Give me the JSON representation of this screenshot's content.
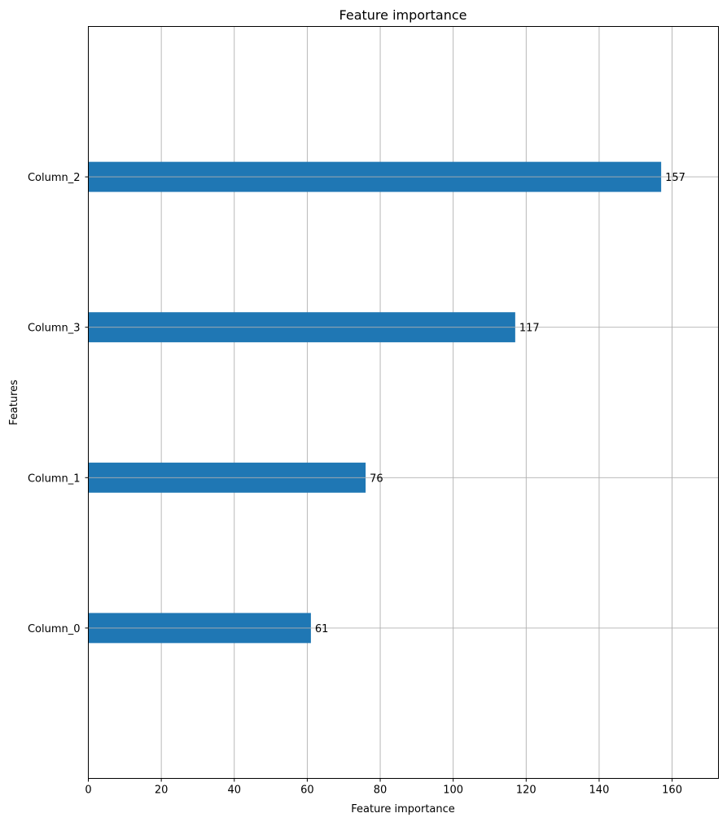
{
  "chart_data": {
    "type": "bar",
    "orientation": "horizontal",
    "title": "Feature importance",
    "xlabel": "Feature importance",
    "ylabel": "Features",
    "categories": [
      "Column_0",
      "Column_1",
      "Column_3",
      "Column_2"
    ],
    "values": [
      61,
      76,
      117,
      157
    ],
    "data_labels": [
      "61",
      "76",
      "117",
      "157"
    ],
    "xlim": [
      0,
      172.7
    ],
    "ylim": [
      -1,
      4
    ],
    "xticks": [
      0,
      20,
      40,
      60,
      80,
      100,
      120,
      140,
      160
    ],
    "xtick_labels": [
      "0",
      "20",
      "40",
      "60",
      "80",
      "100",
      "120",
      "140",
      "160"
    ],
    "grid": true,
    "bar_color": "#1f77b4",
    "grid_color": "#b0b0b0"
  }
}
